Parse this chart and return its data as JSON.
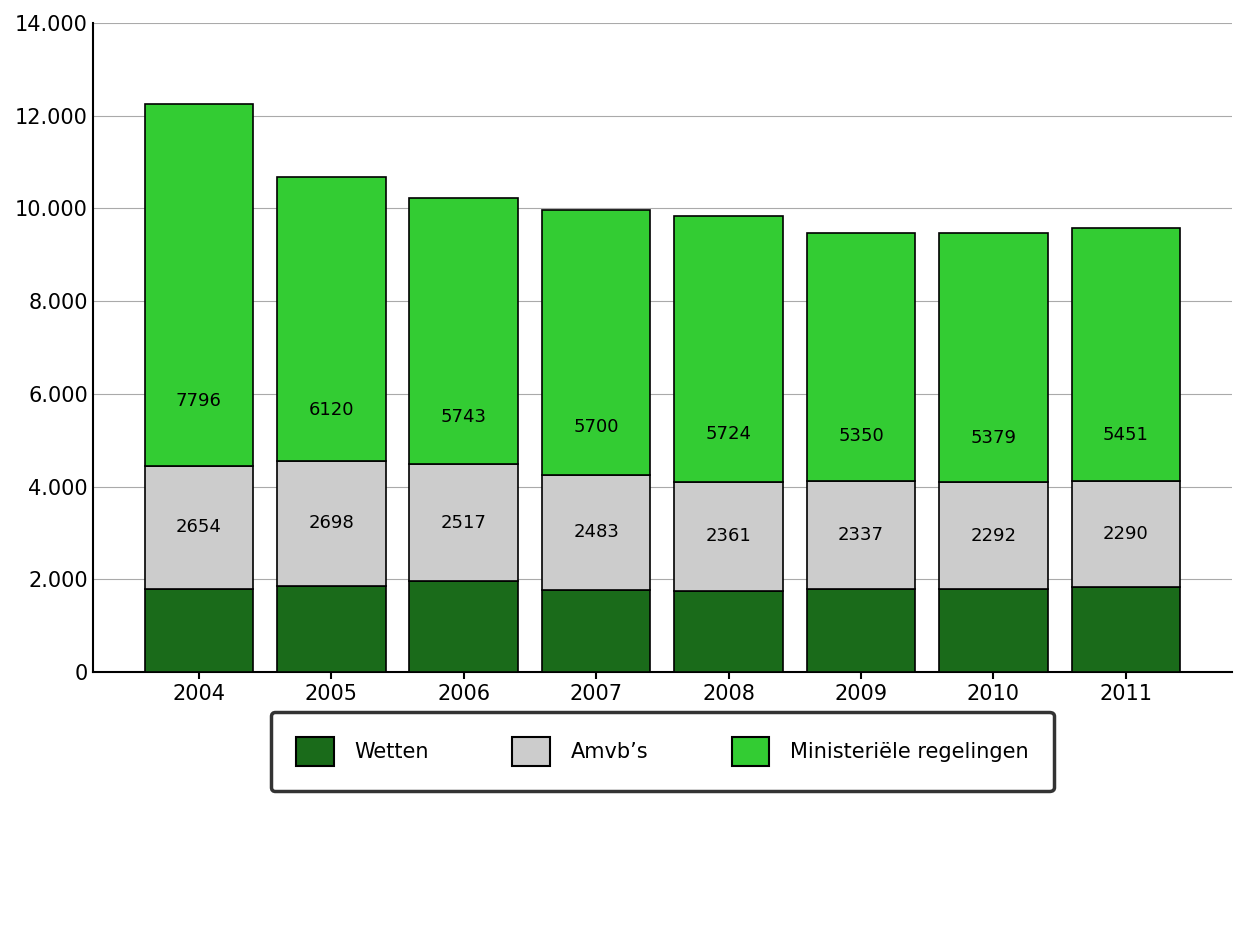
{
  "years": [
    "2004",
    "2005",
    "2006",
    "2007",
    "2008",
    "2009",
    "2010",
    "2011"
  ],
  "wetten": [
    1800,
    1862,
    1960,
    1777,
    1745,
    1793,
    1799,
    1839
  ],
  "amvbs": [
    2654,
    2698,
    2517,
    2483,
    2361,
    2337,
    2292,
    2290
  ],
  "ministeriele": [
    7796,
    6120,
    5743,
    5700,
    5724,
    5350,
    5379,
    5451
  ],
  "wetten_color": "#1a6b1a",
  "amvbs_color": "#cccccc",
  "ministeriele_color": "#33cc33",
  "bar_edge_color": "#000000",
  "ylim": [
    0,
    14000
  ],
  "yticks": [
    0,
    2000,
    4000,
    6000,
    8000,
    10000,
    12000,
    14000
  ],
  "ytick_labels": [
    "0",
    "2.000",
    "4.000",
    "6.000",
    "8.000",
    "10.000",
    "12.000",
    "14.000"
  ],
  "legend_labels": [
    "Wetten",
    "Amvb’s",
    "Ministeriële regelingen"
  ],
  "label_fontsize": 13,
  "tick_fontsize": 15,
  "bar_width": 0.82,
  "background_color": "#ffffff",
  "grid_color": "#aaaaaa",
  "legend_fontsize": 15
}
